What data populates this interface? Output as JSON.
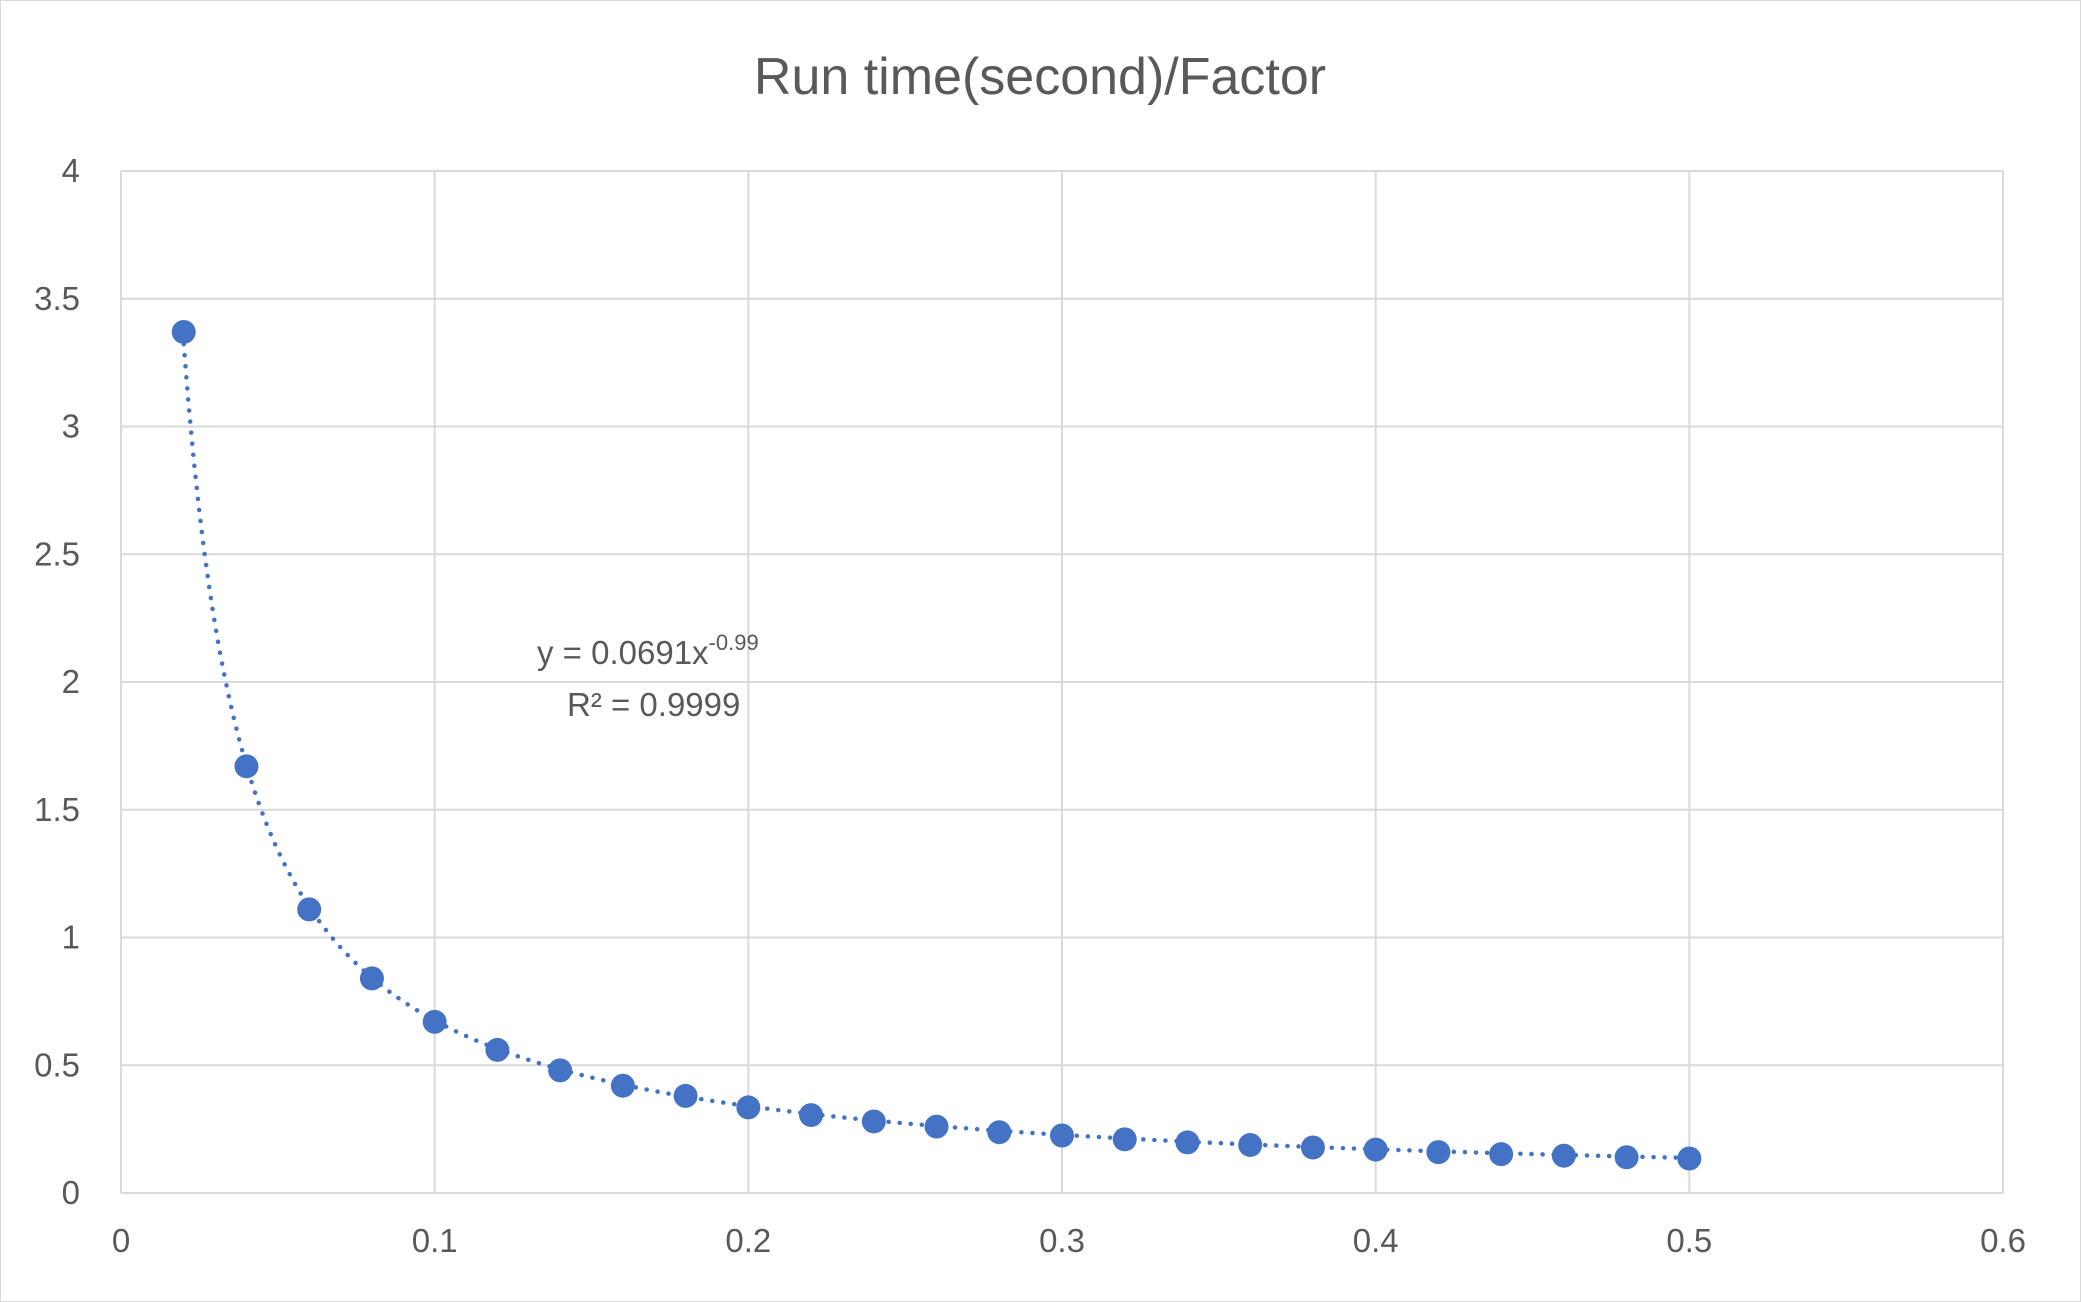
{
  "chart_data": {
    "type": "scatter",
    "title": "Run time(second)/Factor",
    "xlabel": "",
    "ylabel": "",
    "xlim": [
      0,
      0.6
    ],
    "ylim": [
      0,
      4
    ],
    "x_ticks": [
      "0",
      "0.1",
      "0.2",
      "0.3",
      "0.4",
      "0.5",
      "0.6"
    ],
    "y_ticks": [
      "0",
      "0.5",
      "1",
      "1.5",
      "2",
      "2.5",
      "3",
      "3.5",
      "4"
    ],
    "grid": true,
    "legend": "none",
    "marker_color": "#4472c4",
    "series": [
      {
        "x": [
          0.02,
          0.04,
          0.06,
          0.08,
          0.1,
          0.12,
          0.14,
          0.16,
          0.18,
          0.2,
          0.22,
          0.24,
          0.26,
          0.28,
          0.3,
          0.32,
          0.34,
          0.36,
          0.38,
          0.4,
          0.42,
          0.44,
          0.46,
          0.48,
          0.5
        ],
        "y": [
          3.37,
          1.67,
          1.11,
          0.84,
          0.67,
          0.56,
          0.48,
          0.42,
          0.38,
          0.335,
          0.305,
          0.28,
          0.26,
          0.238,
          0.225,
          0.21,
          0.198,
          0.188,
          0.178,
          0.17,
          0.16,
          0.152,
          0.146,
          0.14,
          0.135
        ]
      }
    ],
    "trendline": {
      "type": "power",
      "coefficient": 0.0691,
      "exponent": -0.99,
      "style": "dotted",
      "equation_main": "y = 0.0691x",
      "equation_exponent": "-0.99",
      "r_squared": "R² = 0.9999"
    }
  }
}
